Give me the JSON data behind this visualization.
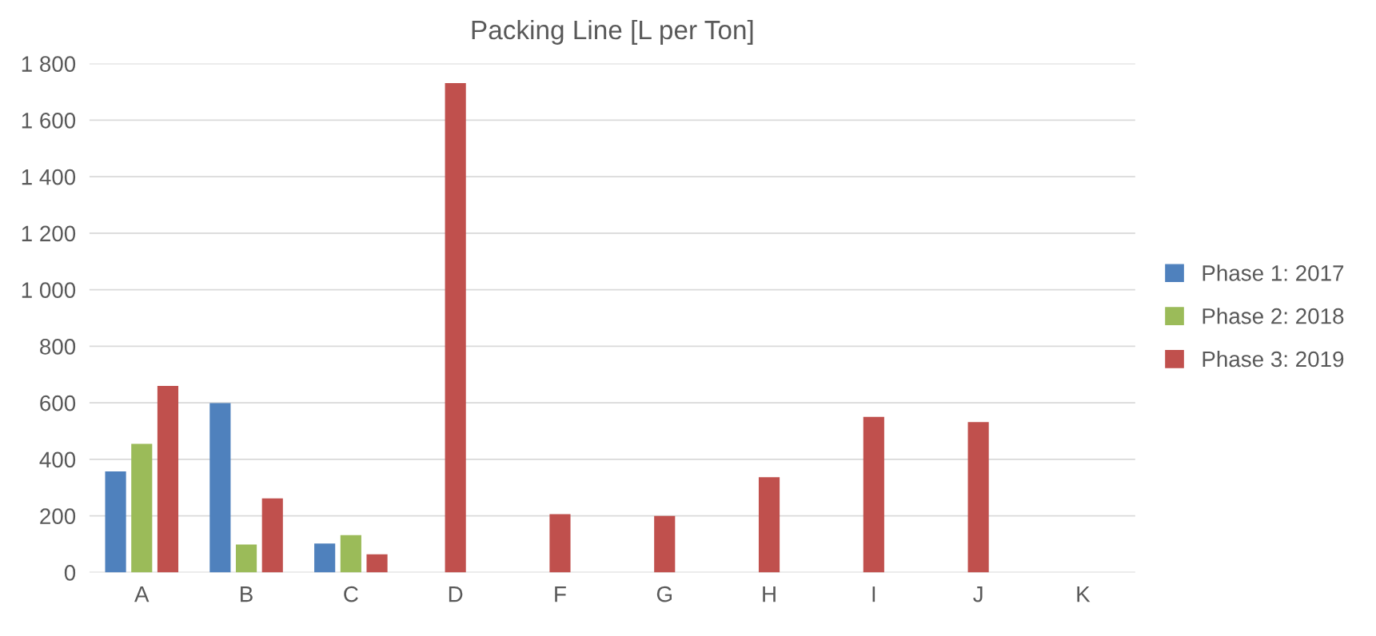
{
  "chart_data": {
    "type": "bar",
    "title": "Packing Line [L per Ton]",
    "categories": [
      "A",
      "B",
      "C",
      "D",
      "F",
      "G",
      "H",
      "I",
      "J",
      "K"
    ],
    "series": [
      {
        "name": "Phase 1: 2017",
        "color": "#4f81bd",
        "values": [
          357,
          599,
          102,
          null,
          null,
          null,
          null,
          null,
          null,
          null
        ]
      },
      {
        "name": "Phase 2: 2018",
        "color": "#9bbb59",
        "values": [
          455,
          99,
          132,
          null,
          null,
          null,
          null,
          null,
          null,
          null
        ]
      },
      {
        "name": "Phase 3: 2019",
        "color": "#c0504d",
        "values": [
          660,
          262,
          64,
          1731,
          206,
          200,
          337,
          550,
          532,
          null
        ]
      }
    ],
    "ylim": [
      0,
      1800
    ],
    "yticks": [
      {
        "value": 0,
        "label": "0"
      },
      {
        "value": 200,
        "label": "200"
      },
      {
        "value": 400,
        "label": "400"
      },
      {
        "value": 600,
        "label": "600"
      },
      {
        "value": 800,
        "label": "800"
      },
      {
        "value": 1000,
        "label": "1 000"
      },
      {
        "value": 1200,
        "label": "1 200"
      },
      {
        "value": 1400,
        "label": "1 400"
      },
      {
        "value": 1600,
        "label": "1 600"
      },
      {
        "value": 1800,
        "label": "1 800"
      }
    ],
    "grid": "y",
    "legend": "right"
  }
}
